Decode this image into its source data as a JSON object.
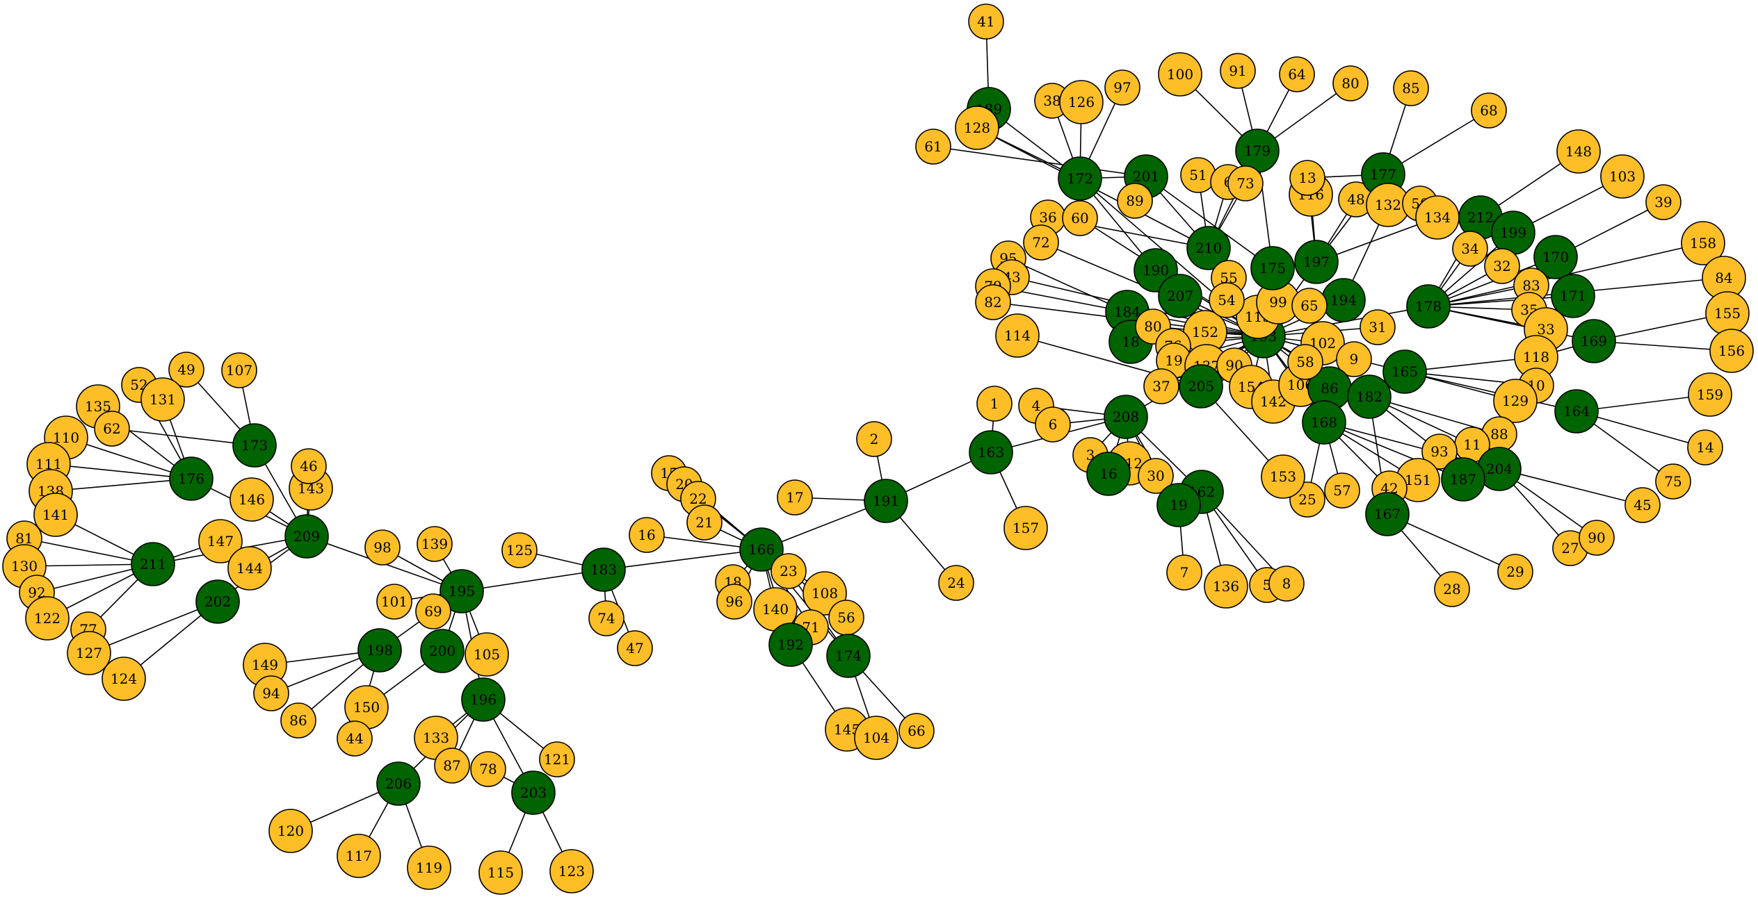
{
  "colors": {
    "hub": "#006400",
    "leaf": "#FDBE27",
    "edge": "#000000",
    "background": "#FFFFFF"
  },
  "nodes": [
    {
      "id": "41",
      "kind": "leaf"
    },
    {
      "id": "189",
      "kind": "hub"
    },
    {
      "id": "128",
      "kind": "leaf"
    },
    {
      "id": "38",
      "kind": "leaf"
    },
    {
      "id": "126",
      "kind": "leaf"
    },
    {
      "id": "97",
      "kind": "leaf"
    },
    {
      "id": "61",
      "kind": "leaf"
    },
    {
      "id": "172",
      "kind": "hub"
    },
    {
      "id": "201",
      "kind": "hub"
    },
    {
      "id": "89",
      "kind": "leaf"
    },
    {
      "id": "36",
      "kind": "leaf"
    },
    {
      "id": "60",
      "kind": "leaf"
    },
    {
      "id": "72",
      "kind": "leaf"
    },
    {
      "id": "95",
      "kind": "leaf"
    },
    {
      "id": "43",
      "kind": "leaf"
    },
    {
      "id": "79",
      "kind": "leaf"
    },
    {
      "id": "82",
      "kind": "leaf"
    },
    {
      "id": "114",
      "kind": "leaf"
    },
    {
      "id": "100",
      "kind": "leaf"
    },
    {
      "id": "91",
      "kind": "leaf"
    },
    {
      "id": "64",
      "kind": "leaf"
    },
    {
      "id": "80",
      "kind": "leaf"
    },
    {
      "id": "85",
      "kind": "leaf"
    },
    {
      "id": "68",
      "kind": "leaf"
    },
    {
      "id": "179",
      "kind": "hub"
    },
    {
      "id": "51",
      "kind": "leaf"
    },
    {
      "id": "6",
      "kind": "leaf"
    },
    {
      "id": "73",
      "kind": "leaf"
    },
    {
      "id": "210",
      "kind": "hub"
    },
    {
      "id": "190",
      "kind": "hub"
    },
    {
      "id": "207",
      "kind": "hub"
    },
    {
      "id": "184",
      "kind": "hub"
    },
    {
      "id": "18",
      "kind": "hub"
    },
    {
      "id": "80b",
      "label": "80",
      "kind": "leaf"
    },
    {
      "id": "152",
      "kind": "leaf"
    },
    {
      "id": "76",
      "kind": "leaf"
    },
    {
      "id": "19",
      "kind": "leaf"
    },
    {
      "id": "137",
      "kind": "leaf"
    },
    {
      "id": "37",
      "kind": "leaf"
    },
    {
      "id": "205",
      "kind": "hub"
    },
    {
      "id": "90b",
      "label": "90",
      "kind": "leaf"
    },
    {
      "id": "154",
      "kind": "leaf"
    },
    {
      "id": "142",
      "kind": "leaf"
    },
    {
      "id": "106",
      "kind": "leaf"
    },
    {
      "id": "193",
      "kind": "hub"
    },
    {
      "id": "113",
      "kind": "leaf"
    },
    {
      "id": "99",
      "kind": "leaf"
    },
    {
      "id": "55",
      "kind": "leaf"
    },
    {
      "id": "54",
      "kind": "leaf"
    },
    {
      "id": "175",
      "kind": "hub"
    },
    {
      "id": "116",
      "kind": "leaf"
    },
    {
      "id": "13",
      "kind": "leaf"
    },
    {
      "id": "48",
      "kind": "leaf"
    },
    {
      "id": "197",
      "kind": "hub"
    },
    {
      "id": "194",
      "kind": "hub"
    },
    {
      "id": "65",
      "kind": "leaf"
    },
    {
      "id": "177",
      "kind": "hub"
    },
    {
      "id": "132",
      "kind": "leaf"
    },
    {
      "id": "50",
      "kind": "leaf"
    },
    {
      "id": "134",
      "kind": "leaf"
    },
    {
      "id": "102",
      "kind": "leaf"
    },
    {
      "id": "31",
      "kind": "leaf"
    },
    {
      "id": "9",
      "kind": "leaf"
    },
    {
      "id": "86",
      "kind": "hub"
    },
    {
      "id": "58",
      "kind": "leaf"
    },
    {
      "id": "182",
      "kind": "hub"
    },
    {
      "id": "165",
      "kind": "hub"
    },
    {
      "id": "168",
      "kind": "hub"
    },
    {
      "id": "148",
      "kind": "leaf"
    },
    {
      "id": "103",
      "kind": "leaf"
    },
    {
      "id": "39",
      "kind": "leaf"
    },
    {
      "id": "212",
      "kind": "hub"
    },
    {
      "id": "199",
      "kind": "hub"
    },
    {
      "id": "34",
      "kind": "leaf"
    },
    {
      "id": "32",
      "kind": "leaf"
    },
    {
      "id": "170",
      "kind": "hub"
    },
    {
      "id": "83",
      "kind": "leaf"
    },
    {
      "id": "158",
      "kind": "leaf"
    },
    {
      "id": "84",
      "kind": "leaf"
    },
    {
      "id": "178",
      "kind": "hub"
    },
    {
      "id": "35",
      "kind": "leaf"
    },
    {
      "id": "171",
      "kind": "hub"
    },
    {
      "id": "155",
      "kind": "leaf"
    },
    {
      "id": "33",
      "kind": "leaf"
    },
    {
      "id": "169",
      "kind": "hub"
    },
    {
      "id": "156",
      "kind": "leaf"
    },
    {
      "id": "118",
      "kind": "leaf"
    },
    {
      "id": "10",
      "kind": "leaf"
    },
    {
      "id": "129",
      "kind": "leaf"
    },
    {
      "id": "159",
      "kind": "leaf"
    },
    {
      "id": "164",
      "kind": "hub"
    },
    {
      "id": "14",
      "kind": "leaf"
    },
    {
      "id": "88",
      "kind": "leaf"
    },
    {
      "id": "11",
      "kind": "leaf"
    },
    {
      "id": "93",
      "kind": "leaf"
    },
    {
      "id": "75",
      "kind": "leaf"
    },
    {
      "id": "204",
      "kind": "hub"
    },
    {
      "id": "187",
      "kind": "hub"
    },
    {
      "id": "151",
      "kind": "leaf"
    },
    {
      "id": "42b",
      "label": "42",
      "kind": "leaf"
    },
    {
      "id": "45",
      "kind": "leaf"
    },
    {
      "id": "167",
      "kind": "hub"
    },
    {
      "id": "27",
      "kind": "leaf"
    },
    {
      "id": "90",
      "kind": "leaf"
    },
    {
      "id": "29",
      "kind": "leaf"
    },
    {
      "id": "28",
      "kind": "leaf"
    },
    {
      "id": "57",
      "kind": "leaf"
    },
    {
      "id": "25",
      "kind": "leaf"
    },
    {
      "id": "153",
      "kind": "leaf"
    },
    {
      "id": "208",
      "kind": "hub"
    },
    {
      "id": "112",
      "kind": "leaf"
    },
    {
      "id": "3",
      "kind": "leaf"
    },
    {
      "id": "30",
      "kind": "leaf"
    },
    {
      "id": "162",
      "kind": "hub"
    },
    {
      "id": "16b",
      "label": "16",
      "kind": "hub"
    },
    {
      "id": "19b",
      "label": "19",
      "kind": "hub"
    },
    {
      "id": "7",
      "kind": "leaf"
    },
    {
      "id": "136",
      "kind": "leaf"
    },
    {
      "id": "5",
      "kind": "leaf"
    },
    {
      "id": "8",
      "kind": "leaf"
    },
    {
      "id": "4",
      "kind": "leaf"
    },
    {
      "id": "6b",
      "label": "6",
      "kind": "leaf"
    },
    {
      "id": "1",
      "kind": "leaf"
    },
    {
      "id": "163",
      "kind": "hub"
    },
    {
      "id": "157",
      "kind": "leaf"
    },
    {
      "id": "2",
      "kind": "leaf"
    },
    {
      "id": "191",
      "kind": "hub"
    },
    {
      "id": "24",
      "kind": "leaf"
    },
    {
      "id": "17",
      "kind": "leaf"
    },
    {
      "id": "166",
      "kind": "hub"
    },
    {
      "id": "15",
      "kind": "leaf"
    },
    {
      "id": "20",
      "kind": "leaf"
    },
    {
      "id": "22",
      "kind": "leaf"
    },
    {
      "id": "21",
      "kind": "leaf"
    },
    {
      "id": "16",
      "kind": "leaf"
    },
    {
      "id": "18b",
      "label": "18",
      "kind": "leaf"
    },
    {
      "id": "96",
      "kind": "leaf"
    },
    {
      "id": "23",
      "kind": "leaf"
    },
    {
      "id": "140",
      "kind": "leaf"
    },
    {
      "id": "108",
      "kind": "leaf"
    },
    {
      "id": "56",
      "kind": "leaf"
    },
    {
      "id": "71",
      "kind": "leaf"
    },
    {
      "id": "192",
      "kind": "hub"
    },
    {
      "id": "174",
      "kind": "hub"
    },
    {
      "id": "145",
      "kind": "leaf"
    },
    {
      "id": "104",
      "kind": "leaf"
    },
    {
      "id": "66",
      "kind": "leaf"
    },
    {
      "id": "183",
      "kind": "hub"
    },
    {
      "id": "125",
      "kind": "leaf"
    },
    {
      "id": "74",
      "kind": "leaf"
    },
    {
      "id": "47",
      "kind": "leaf"
    },
    {
      "id": "195",
      "kind": "hub"
    },
    {
      "id": "139",
      "kind": "leaf"
    },
    {
      "id": "98",
      "kind": "leaf"
    },
    {
      "id": "101",
      "kind": "leaf"
    },
    {
      "id": "69",
      "kind": "leaf"
    },
    {
      "id": "198",
      "kind": "hub"
    },
    {
      "id": "200",
      "kind": "hub"
    },
    {
      "id": "105",
      "kind": "leaf"
    },
    {
      "id": "196",
      "kind": "hub"
    },
    {
      "id": "149",
      "kind": "leaf"
    },
    {
      "id": "94",
      "kind": "leaf"
    },
    {
      "id": "86b",
      "label": "86",
      "kind": "leaf"
    },
    {
      "id": "150",
      "kind": "leaf"
    },
    {
      "id": "44",
      "kind": "leaf"
    },
    {
      "id": "133",
      "kind": "leaf"
    },
    {
      "id": "87",
      "kind": "leaf"
    },
    {
      "id": "78",
      "kind": "leaf"
    },
    {
      "id": "121",
      "kind": "leaf"
    },
    {
      "id": "206",
      "kind": "hub"
    },
    {
      "id": "203",
      "kind": "hub"
    },
    {
      "id": "120",
      "kind": "leaf"
    },
    {
      "id": "117",
      "kind": "leaf"
    },
    {
      "id": "119",
      "kind": "leaf"
    },
    {
      "id": "115",
      "kind": "leaf"
    },
    {
      "id": "123",
      "kind": "leaf"
    },
    {
      "id": "209",
      "kind": "hub"
    },
    {
      "id": "143",
      "kind": "leaf"
    },
    {
      "id": "46",
      "kind": "leaf"
    },
    {
      "id": "146",
      "kind": "leaf"
    },
    {
      "id": "147",
      "kind": "leaf"
    },
    {
      "id": "144",
      "kind": "leaf"
    },
    {
      "id": "202",
      "kind": "hub"
    },
    {
      "id": "173",
      "kind": "hub"
    },
    {
      "id": "107",
      "kind": "leaf"
    },
    {
      "id": "49",
      "kind": "leaf"
    },
    {
      "id": "52",
      "kind": "leaf"
    },
    {
      "id": "131",
      "kind": "leaf"
    },
    {
      "id": "135",
      "kind": "leaf"
    },
    {
      "id": "62",
      "kind": "leaf"
    },
    {
      "id": "110",
      "kind": "leaf"
    },
    {
      "id": "176",
      "kind": "hub"
    },
    {
      "id": "111",
      "kind": "leaf"
    },
    {
      "id": "138",
      "kind": "leaf"
    },
    {
      "id": "141",
      "kind": "leaf"
    },
    {
      "id": "81",
      "kind": "leaf"
    },
    {
      "id": "130",
      "kind": "leaf"
    },
    {
      "id": "211",
      "kind": "hub"
    },
    {
      "id": "92",
      "kind": "leaf"
    },
    {
      "id": "122",
      "kind": "leaf"
    },
    {
      "id": "77",
      "kind": "leaf"
    },
    {
      "id": "127",
      "kind": "leaf"
    },
    {
      "id": "124",
      "kind": "leaf"
    }
  ],
  "edges": [
    [
      "41",
      "189"
    ],
    [
      "189",
      "172"
    ],
    [
      "128",
      "172"
    ],
    [
      "128",
      "210"
    ],
    [
      "38",
      "172"
    ],
    [
      "126",
      "172"
    ],
    [
      "97",
      "172"
    ],
    [
      "61",
      "201"
    ],
    [
      "172",
      "201"
    ],
    [
      "172",
      "190"
    ],
    [
      "172",
      "193"
    ],
    [
      "201",
      "210"
    ],
    [
      "201",
      "89"
    ],
    [
      "201",
      "175"
    ],
    [
      "36",
      "210"
    ],
    [
      "60",
      "193"
    ],
    [
      "72",
      "193"
    ],
    [
      "95",
      "184"
    ],
    [
      "43",
      "193"
    ],
    [
      "79",
      "184"
    ],
    [
      "82",
      "193"
    ],
    [
      "114",
      "205"
    ],
    [
      "100",
      "179"
    ],
    [
      "91",
      "179"
    ],
    [
      "64",
      "179"
    ],
    [
      "80",
      "179"
    ],
    [
      "179",
      "210"
    ],
    [
      "179",
      "175"
    ],
    [
      "51",
      "210"
    ],
    [
      "6",
      "210"
    ],
    [
      "73",
      "210"
    ],
    [
      "190",
      "193"
    ],
    [
      "207",
      "193"
    ],
    [
      "184",
      "193"
    ],
    [
      "18",
      "193"
    ],
    [
      "80b",
      "193"
    ],
    [
      "152",
      "193"
    ],
    [
      "76",
      "193"
    ],
    [
      "19",
      "193"
    ],
    [
      "137",
      "193"
    ],
    [
      "37",
      "193"
    ],
    [
      "205",
      "193"
    ],
    [
      "90b",
      "193"
    ],
    [
      "154",
      "193"
    ],
    [
      "142",
      "193"
    ],
    [
      "106",
      "193"
    ],
    [
      "113",
      "193"
    ],
    [
      "99",
      "193"
    ],
    [
      "55",
      "193"
    ],
    [
      "54",
      "193"
    ],
    [
      "175",
      "193"
    ],
    [
      "116",
      "197"
    ],
    [
      "13",
      "197"
    ],
    [
      "48",
      "197"
    ],
    [
      "197",
      "193"
    ],
    [
      "194",
      "193"
    ],
    [
      "65",
      "193"
    ],
    [
      "85",
      "177"
    ],
    [
      "68",
      "177"
    ],
    [
      "177",
      "197"
    ],
    [
      "177",
      "13"
    ],
    [
      "132",
      "194"
    ],
    [
      "134",
      "197"
    ],
    [
      "102",
      "193"
    ],
    [
      "31",
      "193"
    ],
    [
      "9",
      "193"
    ],
    [
      "86",
      "193"
    ],
    [
      "58",
      "193"
    ],
    [
      "182",
      "193"
    ],
    [
      "165",
      "193"
    ],
    [
      "168",
      "193"
    ],
    [
      "148",
      "212"
    ],
    [
      "103",
      "199"
    ],
    [
      "39",
      "170"
    ],
    [
      "212",
      "178"
    ],
    [
      "199",
      "178"
    ],
    [
      "34",
      "178"
    ],
    [
      "32",
      "178"
    ],
    [
      "170",
      "178"
    ],
    [
      "83",
      "178"
    ],
    [
      "158",
      "178"
    ],
    [
      "84",
      "178"
    ],
    [
      "178",
      "193"
    ],
    [
      "35",
      "178"
    ],
    [
      "171",
      "178"
    ],
    [
      "155",
      "169"
    ],
    [
      "33",
      "178"
    ],
    [
      "169",
      "178"
    ],
    [
      "156",
      "169"
    ],
    [
      "118",
      "169"
    ],
    [
      "118",
      "165"
    ],
    [
      "10",
      "165"
    ],
    [
      "129",
      "165"
    ],
    [
      "159",
      "164"
    ],
    [
      "164",
      "165"
    ],
    [
      "14",
      "164"
    ],
    [
      "75",
      "164"
    ],
    [
      "88",
      "182"
    ],
    [
      "11",
      "182"
    ],
    [
      "93",
      "182"
    ],
    [
      "204",
      "168"
    ],
    [
      "187",
      "168"
    ],
    [
      "151",
      "168"
    ],
    [
      "42b",
      "168"
    ],
    [
      "45",
      "204"
    ],
    [
      "167",
      "182"
    ],
    [
      "27",
      "204"
    ],
    [
      "90",
      "204"
    ],
    [
      "29",
      "167"
    ],
    [
      "28",
      "167"
    ],
    [
      "57",
      "168"
    ],
    [
      "25",
      "168"
    ],
    [
      "153",
      "205"
    ],
    [
      "208",
      "193"
    ],
    [
      "112",
      "208"
    ],
    [
      "3",
      "208"
    ],
    [
      "30",
      "208"
    ],
    [
      "162",
      "208"
    ],
    [
      "16b",
      "208"
    ],
    [
      "19b",
      "208"
    ],
    [
      "7",
      "19b"
    ],
    [
      "136",
      "162"
    ],
    [
      "5",
      "162"
    ],
    [
      "8",
      "162"
    ],
    [
      "4",
      "208"
    ],
    [
      "6b",
      "208"
    ],
    [
      "1",
      "163"
    ],
    [
      "163",
      "208"
    ],
    [
      "157",
      "163"
    ],
    [
      "2",
      "191"
    ],
    [
      "191",
      "163"
    ],
    [
      "24",
      "191"
    ],
    [
      "17",
      "191"
    ],
    [
      "166",
      "191"
    ],
    [
      "15",
      "166"
    ],
    [
      "20",
      "166"
    ],
    [
      "22",
      "166"
    ],
    [
      "21",
      "166"
    ],
    [
      "16",
      "166"
    ],
    [
      "18b",
      "166"
    ],
    [
      "96",
      "166"
    ],
    [
      "23",
      "174"
    ],
    [
      "140",
      "166"
    ],
    [
      "108",
      "166"
    ],
    [
      "56",
      "166"
    ],
    [
      "71",
      "166"
    ],
    [
      "192",
      "166"
    ],
    [
      "174",
      "166"
    ],
    [
      "145",
      "192"
    ],
    [
      "104",
      "174"
    ],
    [
      "66",
      "174"
    ],
    [
      "183",
      "166"
    ],
    [
      "125",
      "183"
    ],
    [
      "74",
      "183"
    ],
    [
      "47",
      "183"
    ],
    [
      "195",
      "183"
    ],
    [
      "139",
      "195"
    ],
    [
      "98",
      "195"
    ],
    [
      "101",
      "195"
    ],
    [
      "69",
      "195"
    ],
    [
      "198",
      "195"
    ],
    [
      "200",
      "195"
    ],
    [
      "105",
      "195"
    ],
    [
      "196",
      "195"
    ],
    [
      "149",
      "198"
    ],
    [
      "94",
      "198"
    ],
    [
      "86b",
      "198"
    ],
    [
      "150",
      "200"
    ],
    [
      "44",
      "198"
    ],
    [
      "133",
      "196"
    ],
    [
      "87",
      "196"
    ],
    [
      "78",
      "203"
    ],
    [
      "121",
      "196"
    ],
    [
      "206",
      "196"
    ],
    [
      "203",
      "196"
    ],
    [
      "120",
      "206"
    ],
    [
      "117",
      "206"
    ],
    [
      "119",
      "206"
    ],
    [
      "115",
      "203"
    ],
    [
      "123",
      "203"
    ],
    [
      "209",
      "195"
    ],
    [
      "143",
      "209"
    ],
    [
      "46",
      "209"
    ],
    [
      "146",
      "209"
    ],
    [
      "147",
      "211"
    ],
    [
      "144",
      "209"
    ],
    [
      "202",
      "209"
    ],
    [
      "173",
      "209"
    ],
    [
      "107",
      "173"
    ],
    [
      "49",
      "173"
    ],
    [
      "52",
      "176"
    ],
    [
      "131",
      "176"
    ],
    [
      "135",
      "176"
    ],
    [
      "62",
      "173"
    ],
    [
      "110",
      "176"
    ],
    [
      "176",
      "209"
    ],
    [
      "111",
      "176"
    ],
    [
      "138",
      "176"
    ],
    [
      "141",
      "211"
    ],
    [
      "81",
      "211"
    ],
    [
      "130",
      "211"
    ],
    [
      "211",
      "209"
    ],
    [
      "92",
      "211"
    ],
    [
      "122",
      "211"
    ],
    [
      "77",
      "211"
    ],
    [
      "127",
      "202"
    ],
    [
      "124",
      "202"
    ]
  ]
}
